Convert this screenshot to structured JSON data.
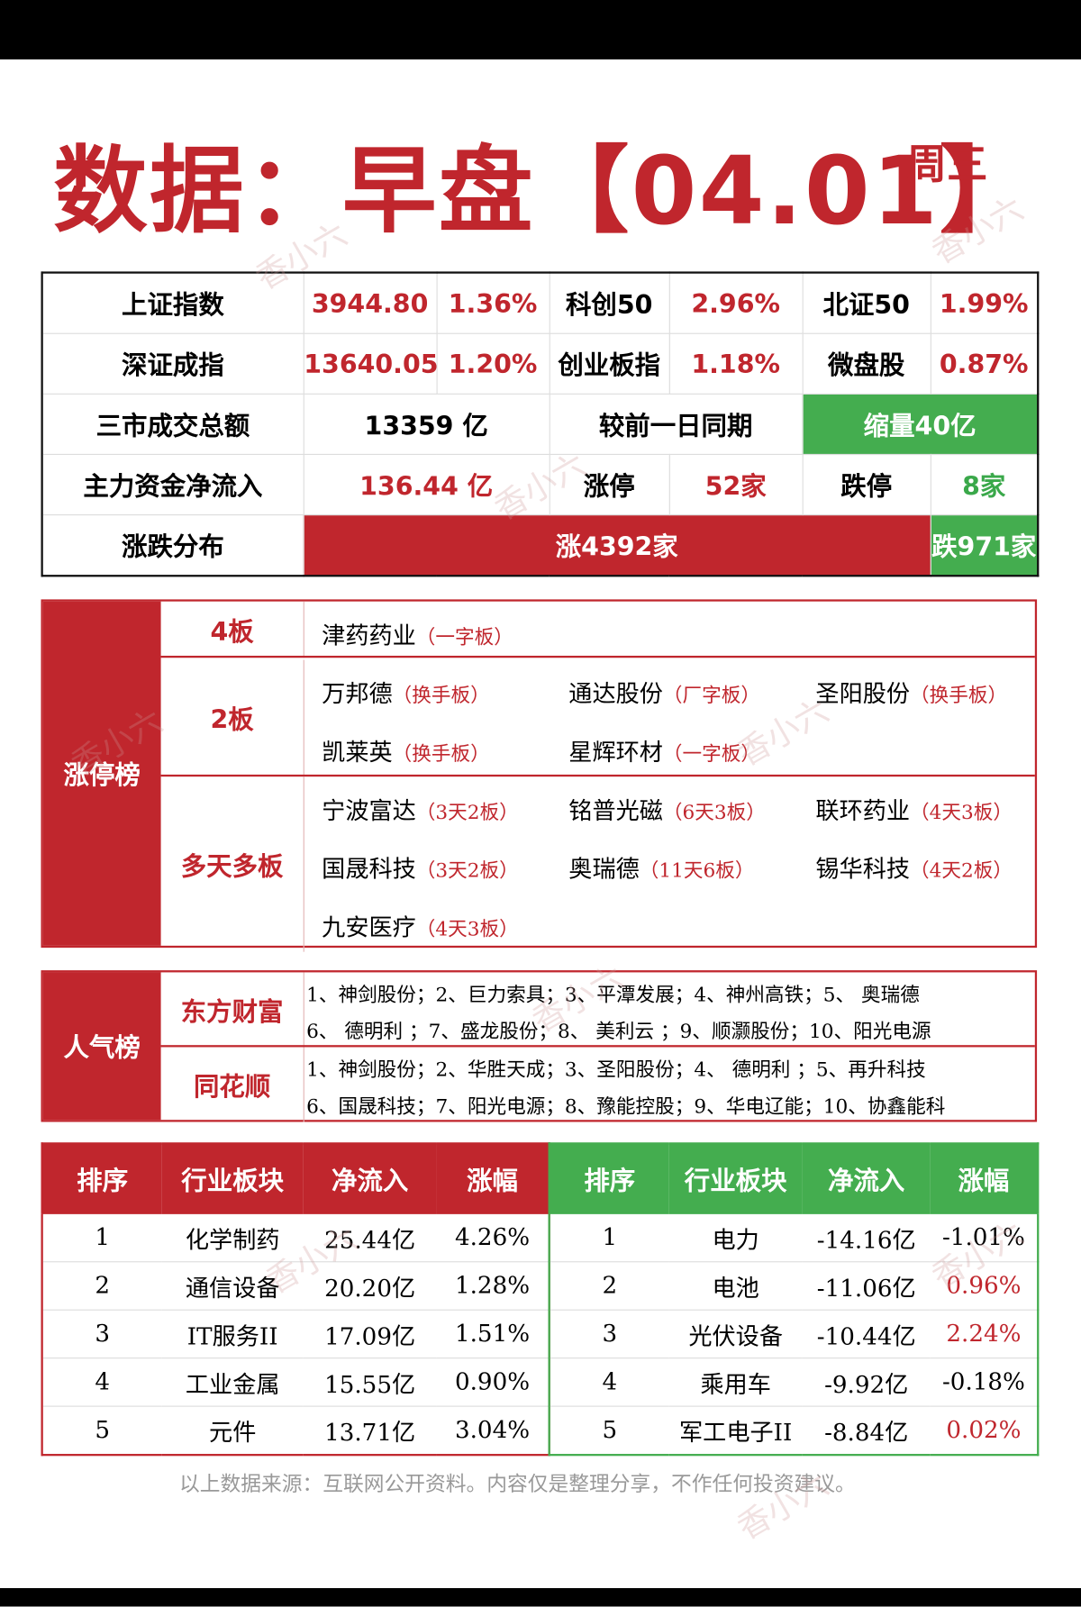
{
  "header": {
    "title": "数据：早盘【04.01】",
    "weekday": "周三"
  },
  "watermark": "香小六",
  "market_table": {
    "rows": [
      [
        "上证指数",
        "3944.80",
        "1.36%",
        "科创50",
        "2.96%",
        "北证50",
        "1.99%"
      ],
      [
        "深证成指",
        "13640.05",
        "1.20%",
        "创业板指",
        "1.18%",
        "微盘股",
        "0.87%"
      ],
      [
        "三市成交总额",
        "13359 亿",
        "较前一日同期",
        "缩量40亿"
      ],
      [
        "主力资金净流入",
        "136.44 亿",
        "涨停",
        "52家",
        "跌停",
        "8家"
      ],
      [
        "涨跌分布",
        "涨4392家",
        "跌971家"
      ]
    ]
  },
  "limit_up": {
    "title": "涨停榜",
    "groups": [
      {
        "label": "4板",
        "rows": [
          [
            {
              "name": "津药药业",
              "tag": "（一字板）"
            }
          ]
        ]
      },
      {
        "label": "2板",
        "rows": [
          [
            {
              "name": "万邦德",
              "tag": "（换手板）"
            },
            {
              "name": "通达股份",
              "tag": "（厂字板）"
            },
            {
              "name": "圣阳股份",
              "tag": "（换手板）"
            }
          ],
          [
            {
              "name": "凯莱英",
              "tag": "（换手板）"
            },
            {
              "name": "星辉环材",
              "tag": "（一字板）"
            }
          ]
        ]
      },
      {
        "label": "多天多板",
        "rows": [
          [
            {
              "name": "宁波富达",
              "tag": "（3天2板）"
            },
            {
              "name": "铭普光磁",
              "tag": "（6天3板）"
            },
            {
              "name": "联环药业",
              "tag": "（4天3板）"
            }
          ],
          [
            {
              "name": "国晟科技",
              "tag": "（3天2板）"
            },
            {
              "name": "奥瑞德",
              "tag": "（11天6板）"
            },
            {
              "name": "锡华科技",
              "tag": "（4天2板）"
            }
          ],
          [
            {
              "name": "九安医疗",
              "tag": "（4天3板）"
            }
          ]
        ]
      }
    ]
  },
  "popularity": {
    "title": "人气榜",
    "sources": [
      {
        "label": "东方财富",
        "lines": [
          "1、神剑股份；2、巨力索具；3、平潭发展；4、神州高铁；5、 奥瑞德",
          "6、 德明利 ；7、盛龙股份；8、 美利云 ；9、顺灏股份；10、阳光电源"
        ]
      },
      {
        "label": "同花顺",
        "lines": [
          "1、神剑股份；2、华胜天成；3、圣阳股份；4、 德明利 ；5、再升科技",
          "6、国晟科技；7、阳光电源；8、豫能控股；9、华电辽能；10、协鑫能科"
        ]
      }
    ]
  },
  "sectors": {
    "inflow": {
      "headers": [
        "排序",
        "行业板块",
        "净流入",
        "涨幅"
      ],
      "rows": [
        [
          "1",
          "化学制药",
          "25.44亿",
          "4.26%"
        ],
        [
          "2",
          "通信设备",
          "20.20亿",
          "1.28%"
        ],
        [
          "3",
          "IT服务II",
          "17.09亿",
          "1.51%"
        ],
        [
          "4",
          "工业金属",
          "15.55亿",
          "0.90%"
        ],
        [
          "5",
          "元件",
          "13.71亿",
          "3.04%"
        ]
      ]
    },
    "outflow": {
      "headers": [
        "排序",
        "行业板块",
        "净流入",
        "涨幅"
      ],
      "rows": [
        [
          "1",
          "电力",
          "-14.16亿",
          "-1.01%"
        ],
        [
          "2",
          "电池",
          "-11.06亿",
          "0.96%"
        ],
        [
          "3",
          "光伏设备",
          "-10.44亿",
          "2.24%"
        ],
        [
          "4",
          "乘用车",
          "-9.92亿",
          "-0.18%"
        ],
        [
          "5",
          "军工电子II",
          "-8.84亿",
          "0.02%"
        ]
      ]
    }
  },
  "footer": "以上数据来源：互联网公开资料。内容仅是整理分享，不作任何投资建议。"
}
